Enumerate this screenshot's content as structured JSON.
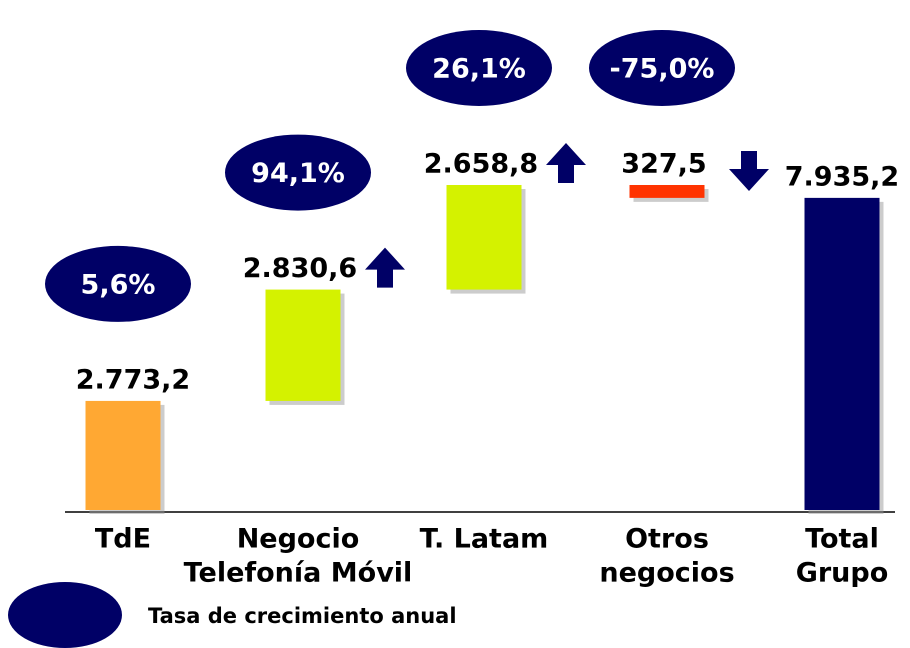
{
  "chart_data": {
    "type": "waterfall",
    "categories": [
      [
        "TdE"
      ],
      [
        "Negocio",
        "Telefonía Móvil"
      ],
      [
        "T. Latam"
      ],
      [
        "Otros",
        "negocios"
      ],
      [
        "Total",
        "Grupo"
      ]
    ],
    "values": [
      2773.2,
      2830.6,
      2658.8,
      -327.5,
      7935.2
    ],
    "value_labels": [
      "2.773,2",
      "2.830,6",
      "2.658,8",
      "327,5",
      "7.935,2"
    ],
    "colors": [
      "#ffa833",
      "#d4f200",
      "#d4f200",
      "#ff3300",
      "#000066"
    ],
    "growth": [
      5.6,
      94.1,
      26.1,
      -75.0,
      null
    ],
    "growth_labels": [
      "5,6%",
      "94,1%",
      "26,1%",
      "-75,0%",
      null
    ],
    "legend": {
      "label": "Tasa de crecimiento anual",
      "color": "#000066"
    }
  }
}
